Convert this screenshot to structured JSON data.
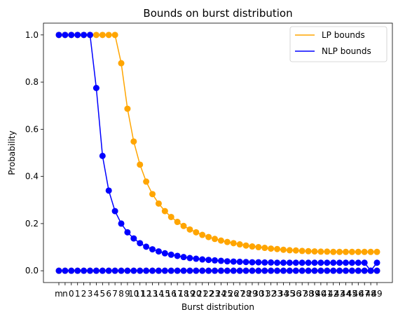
{
  "chart_data": {
    "type": "line",
    "title": "Bounds on burst distribution",
    "xlabel": "Burst distribution",
    "ylabel": "Probability",
    "ylim": [
      -0.05,
      1.05
    ],
    "yticks": [
      0.0,
      0.2,
      0.4,
      0.6,
      0.8,
      1.0
    ],
    "ytick_labels": [
      "0.0",
      "0.2",
      "0.4",
      "0.6",
      "0.8",
      "1.0"
    ],
    "grid": false,
    "legend_position": "top-right",
    "x": [
      "m",
      "n",
      "0",
      "1",
      "2",
      "3",
      "4",
      "5",
      "6",
      "7",
      "8",
      "9",
      "10",
      "11",
      "12",
      "13",
      "14",
      "15",
      "16",
      "17",
      "18",
      "19",
      "20",
      "21",
      "22",
      "23",
      "24",
      "25",
      "26",
      "27",
      "28",
      "29",
      "30",
      "31",
      "32",
      "33",
      "34",
      "35",
      "36",
      "37",
      "38",
      "39",
      "40",
      "41",
      "42",
      "43",
      "44",
      "45",
      "46",
      "47",
      "48",
      "49"
    ],
    "series": [
      {
        "name": "LP bounds",
        "color": "#ffa500",
        "upper": [
          1.0,
          1.0,
          1.0,
          1.0,
          1.0,
          1.0,
          1.0,
          1.0,
          1.0,
          1.0,
          0.88,
          0.687,
          0.548,
          0.45,
          0.378,
          0.325,
          0.285,
          0.253,
          0.228,
          0.207,
          0.19,
          0.175,
          0.163,
          0.152,
          0.143,
          0.135,
          0.128,
          0.122,
          0.117,
          0.112,
          0.107,
          0.103,
          0.1,
          0.097,
          0.094,
          0.092,
          0.089,
          0.087,
          0.086,
          0.084,
          0.083,
          0.082,
          0.081,
          0.081,
          0.08,
          0.08,
          0.08,
          0.08,
          0.08,
          0.08,
          0.08,
          0.08
        ],
        "lower": [
          0,
          0,
          0,
          0,
          0,
          0,
          0,
          0,
          0,
          0,
          0,
          0,
          0,
          0,
          0,
          0,
          0,
          0,
          0,
          0,
          0,
          0,
          0,
          0,
          0,
          0,
          0,
          0,
          0,
          0,
          0,
          0,
          0,
          0,
          0,
          0,
          0,
          0,
          0,
          0,
          0,
          0,
          0,
          0,
          0,
          0,
          0,
          0,
          0,
          0,
          0,
          0
        ]
      },
      {
        "name": "NLP bounds",
        "color": "#0000ff",
        "upper": [
          1.0,
          1.0,
          1.0,
          1.0,
          1.0,
          1.0,
          0.775,
          0.487,
          0.34,
          0.253,
          0.2,
          0.163,
          0.137,
          0.117,
          0.102,
          0.091,
          0.082,
          0.074,
          0.068,
          0.063,
          0.058,
          0.054,
          0.051,
          0.048,
          0.046,
          0.044,
          0.042,
          0.04,
          0.039,
          0.038,
          0.037,
          0.036,
          0.036,
          0.035,
          0.035,
          0.034,
          0.034,
          0.034,
          0.034,
          0.034,
          0.034,
          0.034,
          0.034,
          0.034,
          0.034,
          0.034,
          0.034,
          0.034,
          0.034,
          0.034,
          0.0,
          0.034
        ],
        "lower": [
          0,
          0,
          0,
          0,
          0,
          0,
          0,
          0,
          0,
          0,
          0,
          0,
          0,
          0,
          0,
          0,
          0,
          0,
          0,
          0,
          0,
          0,
          0,
          0,
          0,
          0,
          0,
          0,
          0,
          0,
          0,
          0,
          0,
          0,
          0,
          0,
          0,
          0,
          0,
          0,
          0,
          0,
          0,
          0,
          0,
          0,
          0,
          0,
          0,
          0,
          0,
          0
        ]
      }
    ]
  }
}
